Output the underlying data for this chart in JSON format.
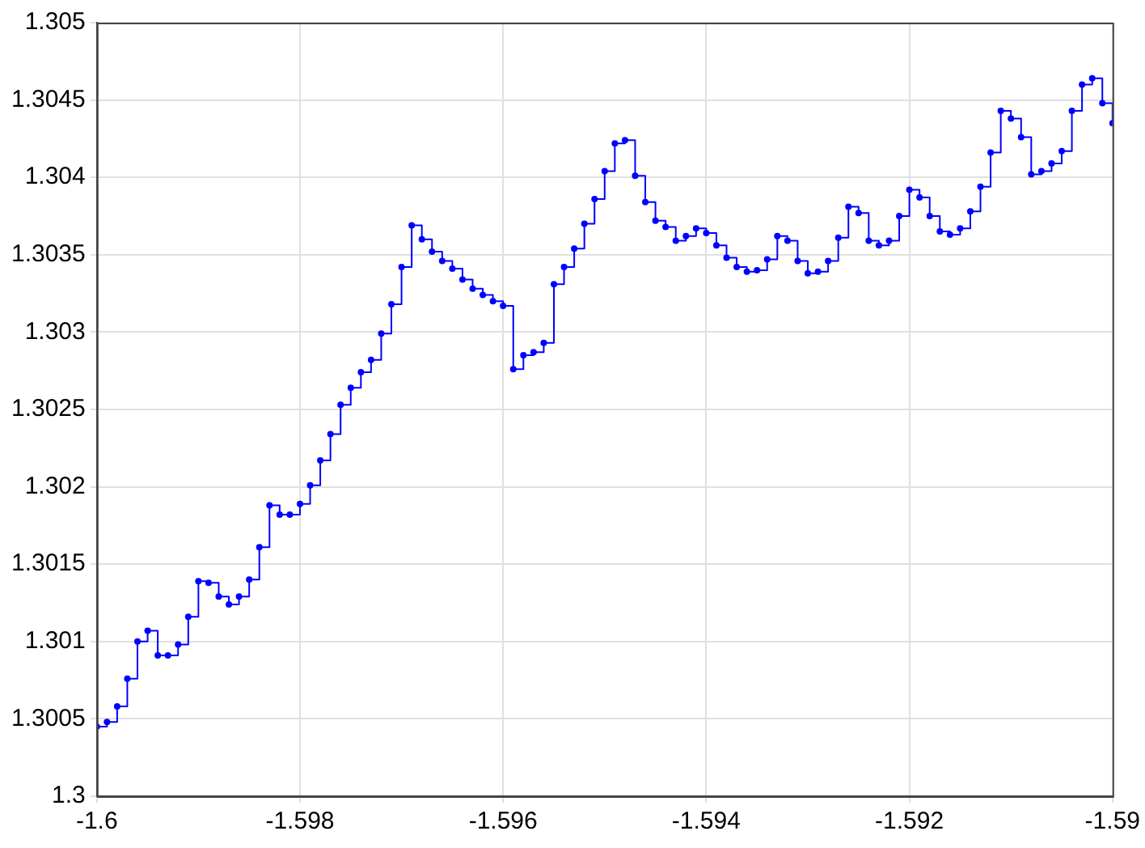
{
  "chart_data": {
    "type": "step",
    "x": [
      -1.6,
      -1.5999,
      -1.5998,
      -1.5997,
      -1.5996,
      -1.5995,
      -1.5994,
      -1.5993,
      -1.5992,
      -1.5991,
      -1.599,
      -1.5989,
      -1.5988,
      -1.5987,
      -1.5986,
      -1.5985,
      -1.5984,
      -1.5983,
      -1.5982,
      -1.5981,
      -1.598,
      -1.5979,
      -1.5978,
      -1.5977,
      -1.5976,
      -1.5975,
      -1.5974,
      -1.5973,
      -1.5972,
      -1.5971,
      -1.597,
      -1.5969,
      -1.5968,
      -1.5967,
      -1.5966,
      -1.5965,
      -1.5964,
      -1.5963,
      -1.5962,
      -1.5961,
      -1.596,
      -1.5959,
      -1.5958,
      -1.5957,
      -1.5956,
      -1.5955,
      -1.5954,
      -1.5953,
      -1.5952,
      -1.5951,
      -1.595,
      -1.5949,
      -1.5948,
      -1.5947,
      -1.5946,
      -1.5945,
      -1.5944,
      -1.5943,
      -1.5942,
      -1.5941,
      -1.594,
      -1.5939,
      -1.5938,
      -1.5937,
      -1.5936,
      -1.5935,
      -1.5934,
      -1.5933,
      -1.5932,
      -1.5931,
      -1.593,
      -1.5929,
      -1.5928,
      -1.5927,
      -1.5926,
      -1.5925,
      -1.5924,
      -1.5923,
      -1.5922,
      -1.5921,
      -1.592,
      -1.5919,
      -1.5918,
      -1.5917,
      -1.5916,
      -1.5915,
      -1.5914,
      -1.5913,
      -1.5912,
      -1.5911,
      -1.591,
      -1.5909,
      -1.5908,
      -1.5907,
      -1.5906,
      -1.5905,
      -1.5904,
      -1.5903,
      -1.5902,
      -1.5901,
      -1.59
    ],
    "series": [
      {
        "color": "#0000ff",
        "values": [
          1.30045,
          1.30048,
          1.30058,
          1.30076,
          1.301,
          1.30107,
          1.30091,
          1.30091,
          1.30098,
          1.30116,
          1.30139,
          1.30138,
          1.30129,
          1.30124,
          1.30129,
          1.3014,
          1.30161,
          1.30188,
          1.30182,
          1.30182,
          1.30189,
          1.30201,
          1.30217,
          1.30234,
          1.30253,
          1.30264,
          1.30274,
          1.30282,
          1.30299,
          1.30318,
          1.30342,
          1.30369,
          1.3036,
          1.30352,
          1.30346,
          1.30341,
          1.30334,
          1.30328,
          1.30324,
          1.3032,
          1.30317,
          1.30276,
          1.30285,
          1.30287,
          1.30293,
          1.30331,
          1.30342,
          1.30354,
          1.3037,
          1.30386,
          1.30404,
          1.30422,
          1.30424,
          1.30401,
          1.30384,
          1.30372,
          1.30368,
          1.30359,
          1.30362,
          1.30367,
          1.30364,
          1.30356,
          1.30348,
          1.30342,
          1.30339,
          1.3034,
          1.30347,
          1.30362,
          1.30359,
          1.30346,
          1.30338,
          1.30339,
          1.30346,
          1.30361,
          1.30381,
          1.30377,
          1.30359,
          1.30356,
          1.30359,
          1.30375,
          1.30392,
          1.30387,
          1.30375,
          1.30365,
          1.30363,
          1.30367,
          1.30378,
          1.30394,
          1.30416,
          1.30443,
          1.30438,
          1.30426,
          1.30402,
          1.30404,
          1.30409,
          1.30417,
          1.30443,
          1.3046,
          1.30464,
          1.30448,
          1.30435
        ]
      }
    ],
    "xlim": [
      -1.6,
      -1.59
    ],
    "xticks": [
      -1.6,
      -1.598,
      -1.596,
      -1.594,
      -1.592,
      -1.59
    ],
    "ylim": [
      1.3,
      1.305
    ],
    "yticks": [
      1.3,
      1.3005,
      1.301,
      1.3015,
      1.302,
      1.3025,
      1.303,
      1.3035,
      1.304,
      1.3045,
      1.305
    ],
    "grid": true,
    "marker": "circle",
    "line_style": "solid"
  }
}
